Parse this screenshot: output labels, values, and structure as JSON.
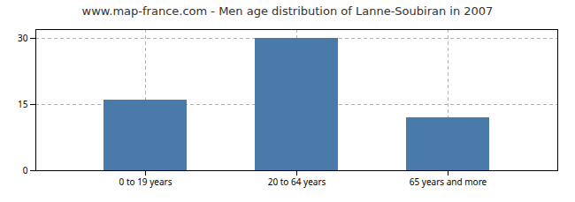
{
  "chart_data": {
    "type": "bar",
    "title": "www.map-france.com - Men age distribution of Lanne-Soubiran in 2007",
    "categories": [
      "0 to 19 years",
      "20 to 64 years",
      "65 years and more"
    ],
    "values": [
      16,
      30,
      12
    ],
    "color": "#4a7aaa",
    "ylim": [
      0,
      32
    ],
    "yticks": [
      0,
      15,
      30
    ],
    "grid": true
  }
}
